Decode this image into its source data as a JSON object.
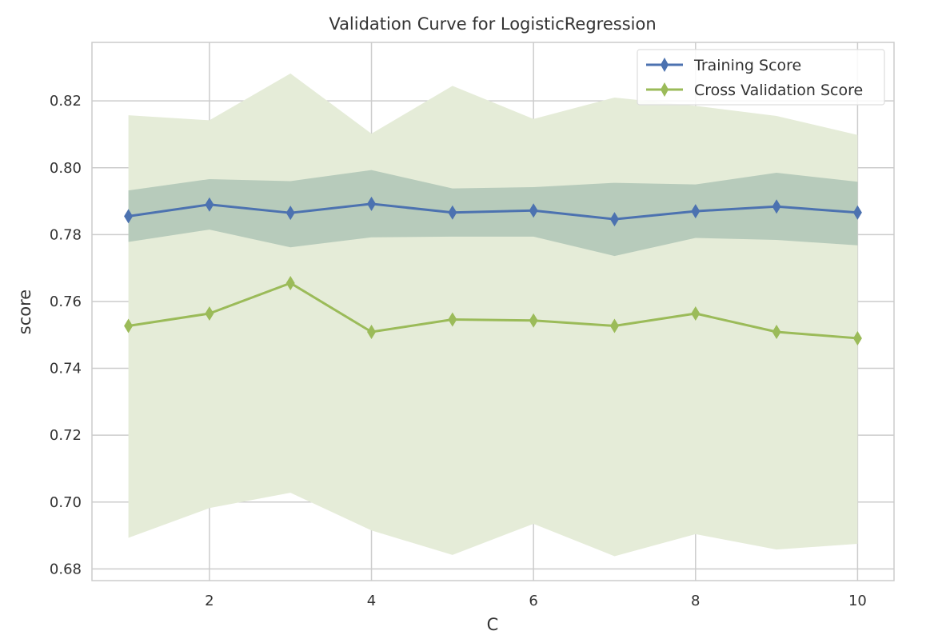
{
  "chart_data": {
    "type": "line",
    "title": "Validation Curve for LogisticRegression",
    "xlabel": "C",
    "ylabel": "score",
    "xlim": [
      0.55,
      10.45
    ],
    "ylim": [
      0.6765,
      0.8375
    ],
    "xticks": [
      2,
      4,
      6,
      8,
      10
    ],
    "yticks": [
      0.68,
      0.7,
      0.72,
      0.74,
      0.76,
      0.78,
      0.8,
      0.82
    ],
    "ytick_labels": [
      "0.68",
      "0.70",
      "0.72",
      "0.74",
      "0.76",
      "0.78",
      "0.80",
      "0.82"
    ],
    "grid": true,
    "legend_position": "top-right",
    "x": [
      1,
      2,
      3,
      4,
      5,
      6,
      7,
      8,
      9,
      10
    ],
    "series": [
      {
        "name": "Training Score",
        "color": "#4C72B0",
        "band_color": "#7FA39A",
        "values": [
          0.7855,
          0.789,
          0.7865,
          0.7892,
          0.7866,
          0.7872,
          0.7846,
          0.787,
          0.7884,
          0.7866
        ],
        "upper": [
          0.7932,
          0.7966,
          0.796,
          0.7993,
          0.7938,
          0.7942,
          0.7955,
          0.795,
          0.7985,
          0.7958
        ],
        "lower": [
          0.7778,
          0.7815,
          0.7762,
          0.7792,
          0.7794,
          0.7794,
          0.7736,
          0.779,
          0.7784,
          0.7768
        ]
      },
      {
        "name": "Cross Validation Score",
        "color": "#9BBB59",
        "band_color": "#E5ECD8",
        "values": [
          0.7527,
          0.7564,
          0.7655,
          0.7509,
          0.7546,
          0.7543,
          0.7527,
          0.7564,
          0.7509,
          0.749
        ],
        "upper": [
          0.8157,
          0.8142,
          0.8282,
          0.8102,
          0.8245,
          0.8146,
          0.821,
          0.8185,
          0.8155,
          0.8098
        ],
        "lower": [
          0.6893,
          0.6982,
          0.7028,
          0.6915,
          0.6842,
          0.6935,
          0.6838,
          0.6904,
          0.6858,
          0.6875
        ]
      }
    ]
  }
}
